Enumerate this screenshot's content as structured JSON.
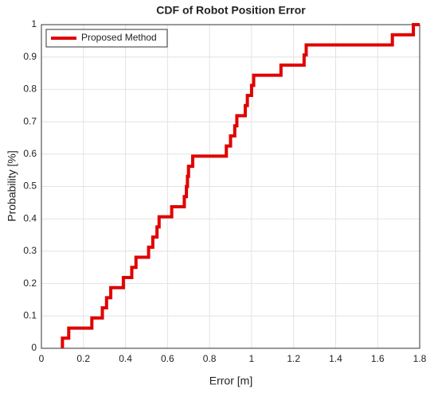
{
  "chart_data": {
    "type": "step",
    "title": "CDF of Robot Position Error",
    "x_label": "Error [m]",
    "y_label": "Probability [%]",
    "x": [
      0.1,
      0.1,
      0.13,
      0.24,
      0.29,
      0.31,
      0.33,
      0.39,
      0.43,
      0.45,
      0.51,
      0.53,
      0.55,
      0.56,
      0.62,
      0.68,
      0.69,
      0.695,
      0.7,
      0.72,
      0.88,
      0.9,
      0.92,
      0.93,
      0.97,
      0.98,
      1.0,
      1.01,
      1.14,
      1.25,
      1.26,
      1.67,
      1.77,
      1.8
    ],
    "series": [
      {
        "name": "Proposed Method",
        "color": "#e00000",
        "values": [
          0,
          0.03125,
          0.0625,
          0.09375,
          0.125,
          0.15625,
          0.1875,
          0.21875,
          0.25,
          0.28125,
          0.3125,
          0.34375,
          0.375,
          0.40625,
          0.4375,
          0.46875,
          0.5,
          0.53125,
          0.5625,
          0.59375,
          0.625,
          0.65625,
          0.6875,
          0.71875,
          0.75,
          0.78125,
          0.8125,
          0.84375,
          0.875,
          0.90625,
          0.9375,
          0.96875,
          1,
          1
        ]
      }
    ],
    "xlim": [
      0,
      1.8
    ],
    "ylim": [
      0,
      1
    ],
    "xticks": [
      0,
      0.2,
      0.4,
      0.6,
      0.8,
      1,
      1.2,
      1.4,
      1.6,
      1.8
    ],
    "yticks": [
      0,
      0.1,
      0.2,
      0.3,
      0.4,
      0.5,
      0.6,
      0.7,
      0.8,
      0.9,
      1
    ],
    "grid": true,
    "legend": "upper-left"
  }
}
